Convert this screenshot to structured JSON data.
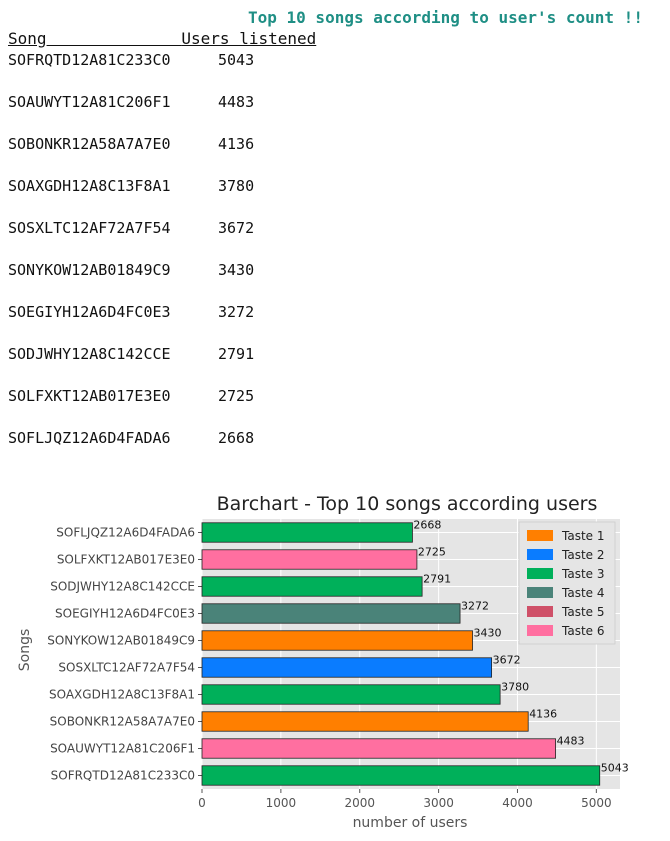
{
  "headline": "Top 10 songs according to user's count !!",
  "table": {
    "headers": {
      "song": "Song",
      "users": "Users listened"
    },
    "rows": [
      {
        "song": "SOFRQTD12A81C233C0",
        "users": "5043"
      },
      {
        "song": "SOAUWYT12A81C206F1",
        "users": "4483"
      },
      {
        "song": "SOBONKR12A58A7A7E0",
        "users": "4136"
      },
      {
        "song": "SOAXGDH12A8C13F8A1",
        "users": "3780"
      },
      {
        "song": "SOSXLTC12AF72A7F54",
        "users": "3672"
      },
      {
        "song": "SONYKOW12AB01849C9",
        "users": "3430"
      },
      {
        "song": "SOEGIYH12A6D4FC0E3",
        "users": "3272"
      },
      {
        "song": "SODJWHY12A8C142CCE",
        "users": "2791"
      },
      {
        "song": "SOLFXKT12AB017E3E0",
        "users": "2725"
      },
      {
        "song": "SOFLJQZ12A6D4FADA6",
        "users": "2668"
      }
    ]
  },
  "chart_data": {
    "type": "bar",
    "orientation": "horizontal",
    "title": "Barchart - Top 10 songs according users",
    "xlabel": "number of users",
    "ylabel": "Songs",
    "xlim": [
      0,
      5300
    ],
    "xticks": [
      0,
      1000,
      2000,
      3000,
      4000,
      5000
    ],
    "grid": true,
    "legend_position": "top-right",
    "background": "#e5e5e5",
    "categories": [
      "SOFRQTD12A81C233C0",
      "SOAUWYT12A81C206F1",
      "SOBONKR12A58A7A7E0",
      "SOAXGDH12A8C13F8A1",
      "SOSXLTC12AF72A7F54",
      "SONYKOW12AB01849C9",
      "SOEGIYH12A6D4FC0E3",
      "SODJWHY12A8C142CCE",
      "SOLFXKT12AB017E3E0",
      "SOFLJQZ12A6D4FADA6"
    ],
    "values": [
      5043,
      4483,
      4136,
      3780,
      3672,
      3430,
      3272,
      2791,
      2725,
      2668
    ],
    "data_labels": [
      "5043",
      "4483",
      "4136",
      "3780",
      "3672",
      "3430",
      "3272",
      "2791",
      "2725",
      "2668"
    ],
    "bar_colors": [
      "#00b05a",
      "#ff6fa0",
      "#ff7f00",
      "#00b05a",
      "#0a7cff",
      "#ff7f00",
      "#4a8379",
      "#00b05a",
      "#ff6fa0",
      "#00b05a"
    ],
    "legend": [
      {
        "label": "Taste 1",
        "color": "#ff7f00"
      },
      {
        "label": "Taste 2",
        "color": "#0a7cff"
      },
      {
        "label": "Taste 3",
        "color": "#00b05a"
      },
      {
        "label": "Taste 4",
        "color": "#4a8379"
      },
      {
        "label": "Taste 5",
        "color": "#cf5068"
      },
      {
        "label": "Taste 6",
        "color": "#ff6fa0"
      }
    ]
  }
}
